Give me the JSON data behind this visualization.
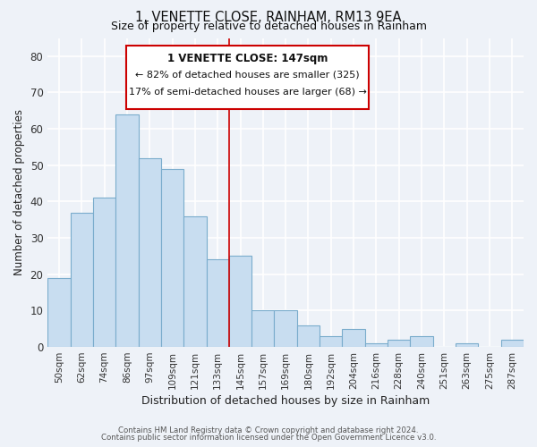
{
  "title": "1, VENETTE CLOSE, RAINHAM, RM13 9EA",
  "subtitle": "Size of property relative to detached houses in Rainham",
  "xlabel": "Distribution of detached houses by size in Rainham",
  "ylabel": "Number of detached properties",
  "bar_labels": [
    "50sqm",
    "62sqm",
    "74sqm",
    "86sqm",
    "97sqm",
    "109sqm",
    "121sqm",
    "133sqm",
    "145sqm",
    "157sqm",
    "169sqm",
    "180sqm",
    "192sqm",
    "204sqm",
    "216sqm",
    "228sqm",
    "240sqm",
    "251sqm",
    "263sqm",
    "275sqm",
    "287sqm"
  ],
  "bar_values": [
    19,
    37,
    41,
    64,
    52,
    49,
    36,
    24,
    25,
    10,
    10,
    6,
    3,
    5,
    1,
    2,
    3,
    0,
    1,
    0,
    2
  ],
  "bar_color": "#c8ddf0",
  "bar_edge_color": "#7aaccc",
  "marker_index": 8,
  "marker_color": "#cc0000",
  "annotation_title": "1 VENETTE CLOSE: 147sqm",
  "annotation_line1": "← 82% of detached houses are smaller (325)",
  "annotation_line2": "17% of semi-detached houses are larger (68) →",
  "footer1": "Contains HM Land Registry data © Crown copyright and database right 2024.",
  "footer2": "Contains public sector information licensed under the Open Government Licence v3.0.",
  "ylim": [
    0,
    85
  ],
  "yticks": [
    0,
    10,
    20,
    30,
    40,
    50,
    60,
    70,
    80
  ],
  "bg_color": "#eef2f8",
  "grid_color": "#ffffff",
  "title_fontsize": 10.5,
  "subtitle_fontsize": 9
}
